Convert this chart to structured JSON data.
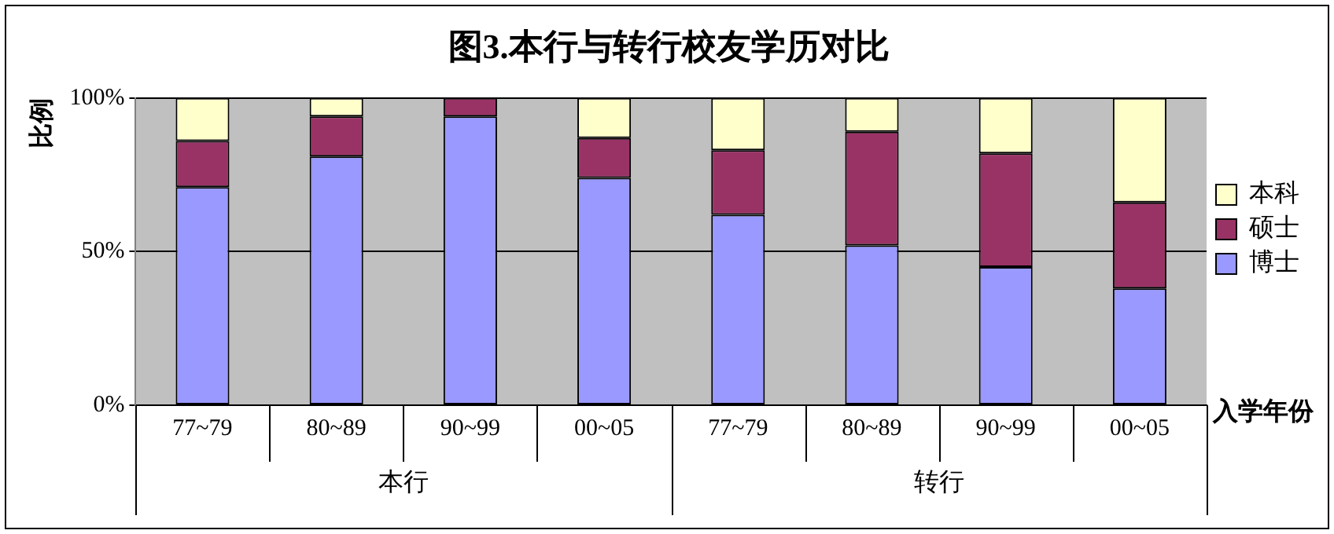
{
  "chart_data": {
    "type": "bar",
    "title": "图3.本行与转行校友学历对比",
    "ylabel": "比例",
    "xlabel": "入学年份",
    "categories": [
      "77~79",
      "80~89",
      "90~99",
      "00~05",
      "77~79",
      "80~89",
      "90~99",
      "00~05"
    ],
    "series": [
      {
        "name": "博士",
        "color": "#9999ff",
        "values": [
          71,
          81,
          94,
          74,
          62,
          52,
          45,
          38
        ]
      },
      {
        "name": "硕士",
        "color": "#993366",
        "values": [
          15,
          13,
          6,
          13,
          21,
          37,
          37,
          28
        ]
      },
      {
        "name": "本科",
        "color": "#ffffcc",
        "values": [
          14,
          6,
          0,
          13,
          17,
          11,
          18,
          34
        ]
      }
    ],
    "stacked": true,
    "ylim": [
      0,
      100
    ],
    "yticks": [
      {
        "value": 0,
        "label": "0%"
      },
      {
        "value": 50,
        "label": "50%"
      },
      {
        "value": 100,
        "label": "100%"
      }
    ],
    "grid": "y",
    "legend": "right",
    "annotations": [
      "本行",
      "转行"
    ]
  }
}
